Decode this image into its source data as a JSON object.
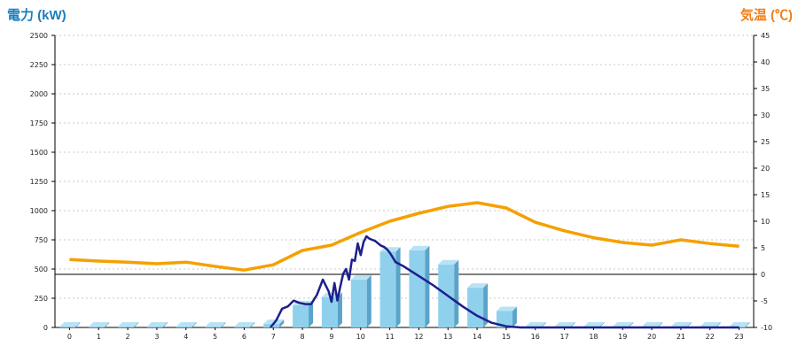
{
  "chart_data": {
    "type": "bar",
    "left_axis_title": "電力 (kW)",
    "right_axis_title": "気温 (℃)",
    "categories": [
      "0",
      "1",
      "2",
      "3",
      "4",
      "5",
      "6",
      "7",
      "8",
      "9",
      "10",
      "11",
      "12",
      "13",
      "14",
      "15",
      "16",
      "17",
      "18",
      "19",
      "20",
      "21",
      "22",
      "23"
    ],
    "y_left": {
      "min": 0,
      "max": 2500,
      "ticks": [
        "0",
        "250",
        "500",
        "750",
        "1000",
        "1250",
        "1500",
        "1750",
        "2000",
        "2250",
        "2500"
      ]
    },
    "y_right": {
      "min": -10,
      "max": 45,
      "ticks": [
        "-10",
        "-5",
        "0",
        "5",
        "10",
        "15",
        "20",
        "25",
        "30",
        "35",
        "40",
        "45"
      ]
    },
    "grid": true,
    "series": [
      {
        "kind": "bar",
        "axis": "left",
        "values": [
          0,
          0,
          0,
          0,
          0,
          0,
          0,
          30,
          190,
          260,
          410,
          650,
          660,
          540,
          340,
          140,
          0,
          0,
          0,
          0,
          0,
          0,
          0,
          0
        ]
      },
      {
        "kind": "line",
        "axis": "left",
        "x": [
          6.9,
          7.1,
          7.3,
          7.5,
          7.7,
          7.9,
          8.1,
          8.3,
          8.5,
          8.7,
          8.9,
          9.0,
          9.1,
          9.2,
          9.3,
          9.4,
          9.5,
          9.6,
          9.7,
          9.8,
          9.9,
          10.0,
          10.1,
          10.2,
          10.3,
          10.4,
          10.5,
          10.6,
          10.7,
          10.8,
          10.9,
          11.0,
          11.1,
          11.2,
          11.5,
          12.0,
          12.5,
          13.0,
          13.5,
          14.0,
          14.5,
          15.0,
          15.5,
          15.8,
          16.0,
          23.0
        ],
        "values": [
          0,
          60,
          160,
          180,
          230,
          210,
          200,
          200,
          280,
          410,
          310,
          220,
          380,
          230,
          350,
          460,
          500,
          410,
          580,
          570,
          720,
          620,
          730,
          780,
          760,
          750,
          740,
          720,
          700,
          690,
          670,
          640,
          600,
          560,
          520,
          440,
          360,
          270,
          180,
          100,
          40,
          10,
          0,
          0,
          0,
          0
        ]
      },
      {
        "kind": "line",
        "axis": "right",
        "x": [
          0,
          1,
          2,
          3,
          4,
          5,
          6,
          7,
          8,
          9,
          10,
          11,
          12,
          13,
          14,
          15,
          16,
          17,
          18,
          19,
          20,
          21,
          22,
          23
        ],
        "values": [
          2.8,
          2.5,
          2.3,
          2.0,
          2.3,
          1.5,
          0.8,
          1.8,
          4.5,
          5.5,
          7.9,
          10.0,
          11.5,
          12.8,
          13.5,
          12.5,
          9.8,
          8.2,
          6.9,
          6.0,
          5.5,
          6.5,
          5.8,
          5.3
        ]
      }
    ],
    "reference_line_right": 0,
    "colors": {
      "bar": "#8fd0ec",
      "bar_side": "#5aa3c9",
      "power_line": "#1d1f8c",
      "temp_line": "#f5a000",
      "left_title": "#1a7ec0",
      "right_title": "#f07f1a"
    }
  }
}
